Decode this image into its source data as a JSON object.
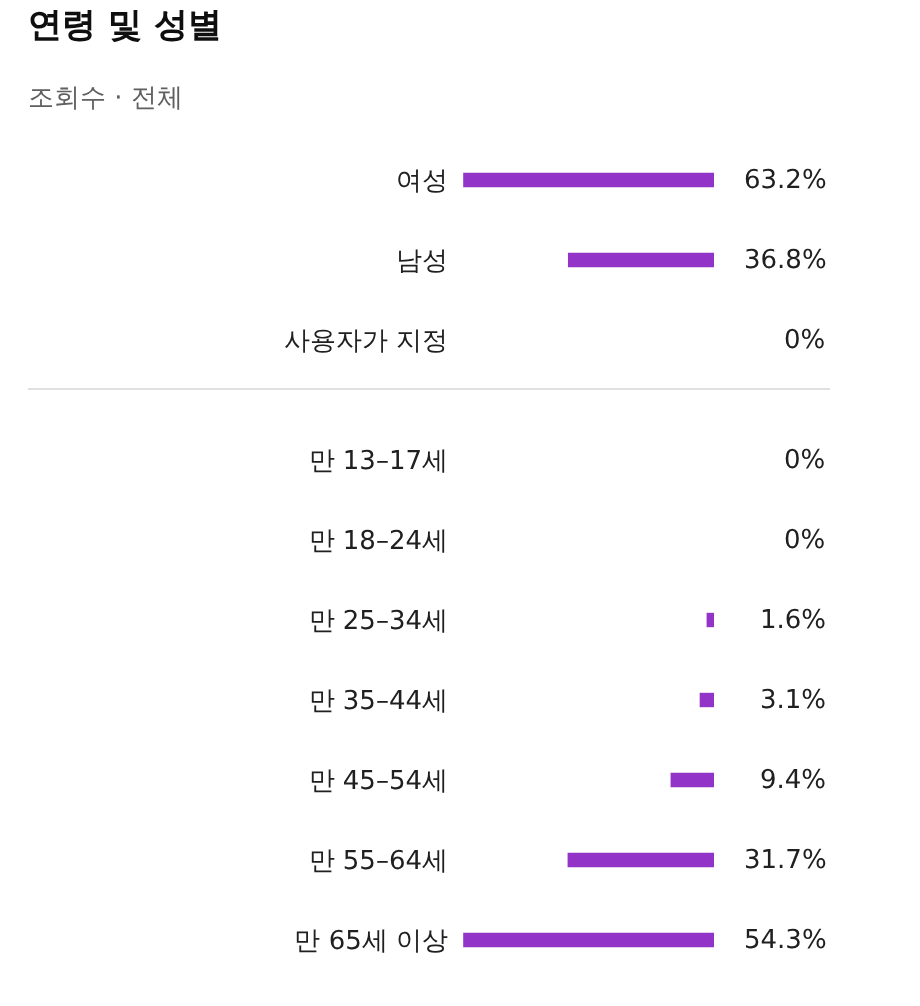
{
  "chart_data": [
    {
      "type": "bar",
      "title": "연령 및 성별",
      "subtitle": "조회수 · 전체",
      "orientation": "horizontal",
      "categories": [
        "여성",
        "남성",
        "사용자가 지정"
      ],
      "values": [
        63.2,
        36.8,
        0
      ],
      "value_labels": [
        "63.2%",
        "36.8%",
        "0%"
      ],
      "color": "#9334c8",
      "tick_labels": "y"
    },
    {
      "type": "bar",
      "orientation": "horizontal",
      "categories": [
        "만 13–17세",
        "만 18–24세",
        "만 25–34세",
        "만 35–44세",
        "만 45–54세",
        "만 55–64세",
        "만 65세 이상"
      ],
      "values": [
        0,
        0,
        1.6,
        3.1,
        9.4,
        31.7,
        54.3
      ],
      "value_labels": [
        "0%",
        "0%",
        "1.6%",
        "3.1%",
        "9.4%",
        "31.7%",
        "54.3%"
      ],
      "color": "#9334c8",
      "tick_labels": "y"
    }
  ]
}
